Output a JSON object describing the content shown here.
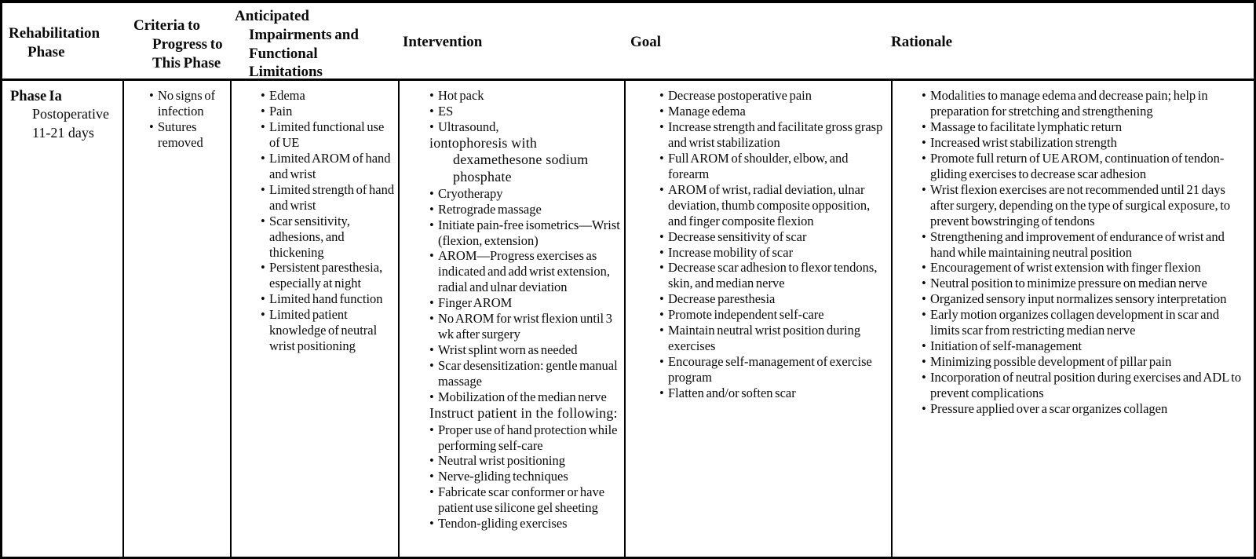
{
  "colors": {
    "background": "#ffffff",
    "border": "#000000",
    "text": "#0a0a0a"
  },
  "table": {
    "headers": {
      "phase": "Rehabilitation\nPhase",
      "criteria": "Criteria to\nProgress to\nThis Phase",
      "impairments": "Anticipated\nImpairments and\nFunctional\nLimitations",
      "intervention": "Intervention",
      "goal": "Goal",
      "rationale": "Rationale"
    },
    "row": {
      "phase": {
        "name": "Phase Ia",
        "detail_lines": [
          "Postoperative",
          "11-21 days"
        ]
      },
      "criteria": [
        "No signs of infection",
        "Sutures removed"
      ],
      "impairments": [
        "Edema",
        "Pain",
        "Limited functional use of UE",
        "Limited AROM of hand and wrist",
        "Limited strength of hand and wrist",
        "Scar sensitivity, adhesions, and thickening",
        "Persistent paresthesia, especially at night",
        "Limited hand function",
        "Limited patient knowledge of neutral wrist positioning"
      ],
      "intervention": [
        {
          "text": "Hot pack",
          "style": "bullet"
        },
        {
          "text": "ES",
          "style": "bullet"
        },
        {
          "text": "Ultrasound,",
          "style": "bullet"
        },
        {
          "text": "iontophoresis with dexamethesone sodium phosphate",
          "style": "plain-large"
        },
        {
          "text": "Cryotherapy",
          "style": "bullet"
        },
        {
          "text": "Retrograde massage",
          "style": "bullet"
        },
        {
          "text": "Initiate pain-free isometrics—Wrist (flexion, extension)",
          "style": "bullet"
        },
        {
          "text": "AROM—Progress exercises as indicated and add wrist extension, radial and ulnar deviation",
          "style": "bullet"
        },
        {
          "text": "Finger AROM",
          "style": "bullet"
        },
        {
          "text": "No AROM for wrist flexion until 3 wk after surgery",
          "style": "bullet"
        },
        {
          "text": "Wrist splint worn as needed",
          "style": "bullet"
        },
        {
          "text": "Scar desensitization: gentle manual massage",
          "style": "bullet"
        },
        {
          "text": "Mobilization of the median nerve",
          "style": "bullet"
        },
        {
          "text": "Instruct patient in the following:",
          "style": "plain-large"
        },
        {
          "text": "Proper use of hand protection while performing self-care",
          "style": "bullet"
        },
        {
          "text": "Neutral wrist positioning",
          "style": "bullet"
        },
        {
          "text": "Nerve-gliding techniques",
          "style": "bullet"
        },
        {
          "text": "Fabricate scar conformer or have patient use silicone gel sheeting",
          "style": "bullet"
        },
        {
          "text": "Tendon-gliding exercises",
          "style": "bullet"
        }
      ],
      "goal": [
        "Decrease postoperative pain",
        "Manage edema",
        "Increase strength and facilitate gross grasp and wrist stabilization",
        "Full AROM of shoulder, elbow, and forearm",
        "AROM of wrist, radial deviation, ulnar deviation, thumb composite opposition, and finger composite flexion",
        "Decrease sensitivity of scar",
        "Increase mobility of scar",
        "Decrease scar adhesion to flexor tendons, skin, and median nerve",
        "Decrease paresthesia",
        "Promote independent self-care",
        "Maintain neutral wrist position during exercises",
        "Encourage self-management of exercise program",
        "Flatten and/or soften scar"
      ],
      "rationale": [
        "Modalities to manage edema and decrease pain; help in preparation for stretching and strengthening",
        "Massage to facilitate lymphatic return",
        "Increased wrist stabilization strength",
        "Promote full return of UE AROM, continuation of tendon-gliding exercises to decrease scar adhesion",
        "Wrist flexion exercises are not recommended until 21 days after surgery, depending on the type of surgical exposure, to prevent bowstringing of tendons",
        "Strengthening and improvement of endurance of wrist and hand while maintaining neutral position",
        "Encouragement of wrist extension with finger flexion",
        "Neutral position to minimize pressure on median nerve",
        "Organized sensory input normalizes sensory interpretation",
        "Early motion organizes collagen development in scar and limits scar from restricting median nerve",
        "Initiation of self-management",
        "Minimizing possible development of pillar pain",
        "Incorporation of neutral position during exercises and ADL to prevent complications",
        "Pressure applied over a scar organizes collagen"
      ]
    }
  }
}
